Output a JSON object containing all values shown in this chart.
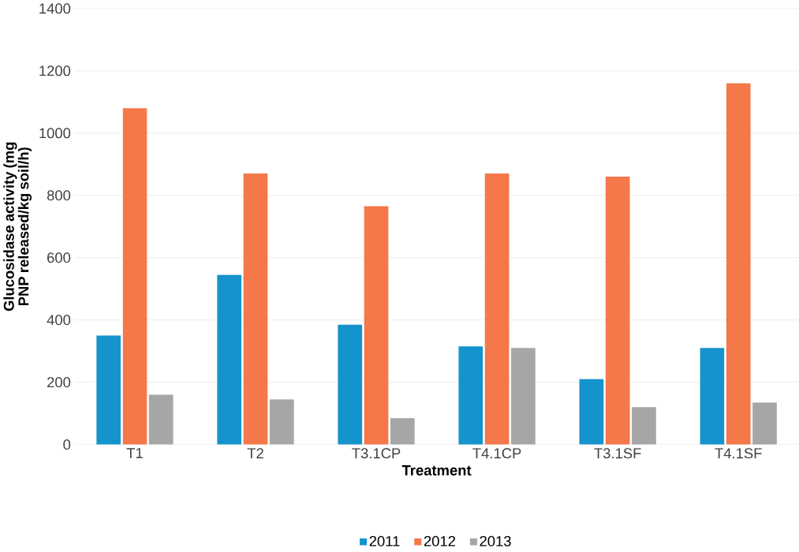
{
  "chart_data": {
    "type": "bar",
    "xlabel": "Treatment",
    "ylabel": "Glucosidase activity (mg PNP released/kg soil/h)",
    "categories": [
      "T1",
      "T2",
      "T3.1CP",
      "T4.1CP",
      "T3.1SF",
      "T4.1SF"
    ],
    "series": [
      {
        "name": "2011",
        "color": "#1593cd",
        "values": [
          350,
          545,
          385,
          315,
          210,
          310
        ]
      },
      {
        "name": "2012",
        "color": "#f4784a",
        "values": [
          1080,
          870,
          765,
          870,
          860,
          1160
        ]
      },
      {
        "name": "2013",
        "color": "#a6a6a6",
        "values": [
          160,
          145,
          85,
          310,
          120,
          135
        ]
      }
    ],
    "ylim": [
      0,
      1400
    ],
    "yticks": [
      0,
      200,
      400,
      600,
      800,
      1000,
      1200,
      1400
    ],
    "grid": "y",
    "legend": "bottom"
  }
}
